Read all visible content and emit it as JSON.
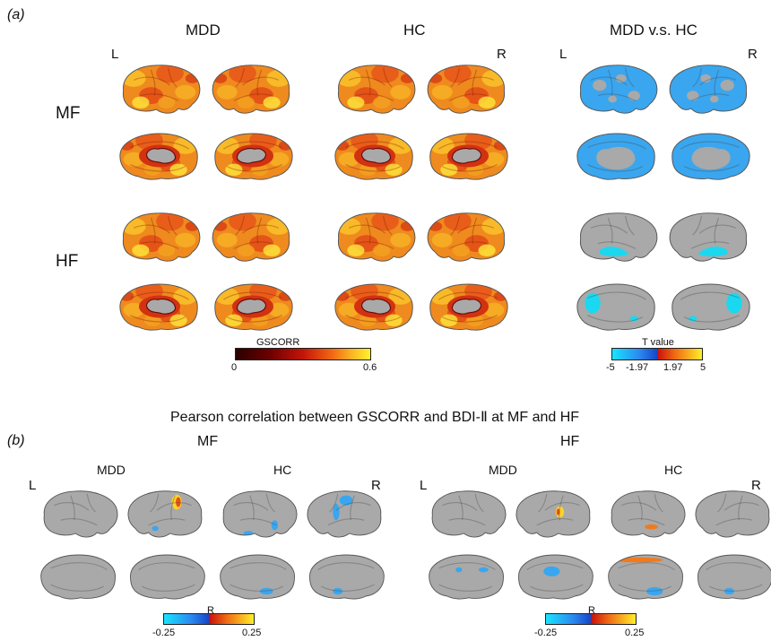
{
  "panel_a": {
    "label": "(a)",
    "columns": [
      "MDD",
      "HC",
      "MDD v.s. HC"
    ],
    "rows": [
      "MF",
      "HF"
    ],
    "hemi_labels": {
      "left": "L",
      "right": "R"
    },
    "colorbar_gscorr": {
      "title": "GSCORR",
      "min": "0",
      "max": "0.6"
    },
    "colorbar_t": {
      "title": "T value",
      "ticks": [
        "-5",
        "-1.97",
        "1.97",
        "5"
      ]
    }
  },
  "panel_b": {
    "title": "Pearson correlation between GSCORR and BDI-Ⅱ at MF and HF",
    "label": "(b)",
    "sections": [
      "MF",
      "HF"
    ],
    "groups": [
      "MDD",
      "HC"
    ],
    "hemi_labels": {
      "left": "L",
      "right": "R"
    },
    "colorbar": {
      "title": "R",
      "min": "-0.25",
      "max": "0.25"
    }
  },
  "colors": {
    "heat_dark": "#3a0000",
    "heat_red": "#d42a10",
    "heat_orange": "#f07a1c",
    "heat_yellow": "#ffe72a",
    "blue": "#3aa6ef",
    "cyan": "#1ad8f0",
    "gray": "#a9a9a9"
  }
}
